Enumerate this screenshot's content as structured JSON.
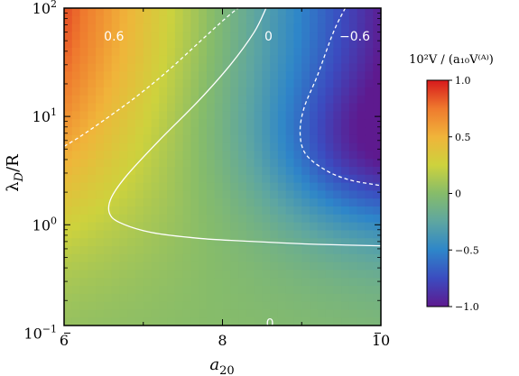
{
  "chart_data": {
    "type": "heatmap",
    "title": "",
    "xlabel": {
      "main": "a",
      "sub": "20"
    },
    "ylabel": {
      "main": "λ",
      "sub": "D",
      "rest": "/R"
    },
    "xlim": [
      6,
      10
    ],
    "ylim": [
      0.05,
      100
    ],
    "yscale": "log",
    "x_ticks": [
      {
        "value": 6,
        "label": "6"
      },
      {
        "value": 8,
        "label": "8"
      },
      {
        "value": 10,
        "label": "10"
      }
    ],
    "x_minor_ticks": [
      7,
      9
    ],
    "y_ticks": [
      {
        "value": 0.1,
        "base": "10",
        "exp": "−1"
      },
      {
        "value": 1,
        "base": "10",
        "exp": "0"
      },
      {
        "value": 10,
        "base": "10",
        "exp": "1"
      },
      {
        "value": 100,
        "base": "10",
        "exp": "2"
      }
    ],
    "colorbar": {
      "title": "10²V / (a₁₀V⁽ᴬ⁾)",
      "range": [
        -1.0,
        1.0
      ],
      "ticks": [
        {
          "value": 1.0,
          "label": "1.0"
        },
        {
          "value": 0.5,
          "label": "0.5"
        },
        {
          "value": 0,
          "label": "0"
        },
        {
          "value": -0.5,
          "label": "−0.5"
        },
        {
          "value": -1.0,
          "label": "−1.0"
        }
      ],
      "colormap": [
        "#5e1a8f",
        "#3b4cc0",
        "#2e86c9",
        "#5ea6a1",
        "#86bc6a",
        "#cdd23d",
        "#f0b43a",
        "#ef7a2e",
        "#d7191c"
      ]
    },
    "contours": [
      {
        "level": 0.6,
        "label": "0.6",
        "style": "dashed",
        "points": [
          [
            6.0,
            5.3
          ],
          [
            6.2,
            6.5
          ],
          [
            6.5,
            9.2
          ],
          [
            6.9,
            15.0
          ],
          [
            7.3,
            26
          ],
          [
            7.7,
            48
          ],
          [
            8.05,
            82
          ],
          [
            8.2,
            100
          ]
        ]
      },
      {
        "level": 0,
        "label": "0",
        "style": "solid",
        "points": [
          [
            8.55,
            100
          ],
          [
            8.4,
            60
          ],
          [
            8.1,
            30
          ],
          [
            7.7,
            14.0
          ],
          [
            7.2,
            6.0
          ],
          [
            6.8,
            2.9
          ],
          [
            6.6,
            1.8
          ],
          [
            6.57,
            1.3
          ],
          [
            6.7,
            1.05
          ],
          [
            7.1,
            0.85
          ],
          [
            7.7,
            0.75
          ],
          [
            8.4,
            0.7
          ],
          [
            9.2,
            0.66
          ],
          [
            10.0,
            0.64
          ]
        ]
      },
      {
        "level": -0.6,
        "label": "−0.6",
        "style": "dashed",
        "points": [
          [
            9.55,
            100
          ],
          [
            9.4,
            60
          ],
          [
            9.2,
            24
          ],
          [
            9.03,
            12.0
          ],
          [
            8.98,
            7.0
          ],
          [
            9.05,
            4.5
          ],
          [
            9.3,
            3.2
          ],
          [
            9.6,
            2.6
          ],
          [
            10.0,
            2.3
          ]
        ]
      },
      {
        "level": 0,
        "label": "0",
        "style": "solid",
        "points": [
          [
            6.0,
            0.1
          ],
          [
            7.0,
            0.1
          ],
          [
            8.0,
            0.1
          ],
          [
            9.0,
            0.102
          ],
          [
            10.0,
            0.104
          ]
        ]
      }
    ],
    "contour_labels": [
      {
        "text": "0.6",
        "x": 6.63,
        "y": 55
      },
      {
        "text": "0",
        "x": 8.58,
        "y": 55
      },
      {
        "text": "−0.6",
        "x": 9.67,
        "y": 55
      },
      {
        "text": "0",
        "x": 8.6,
        "y": 0.123
      }
    ]
  }
}
